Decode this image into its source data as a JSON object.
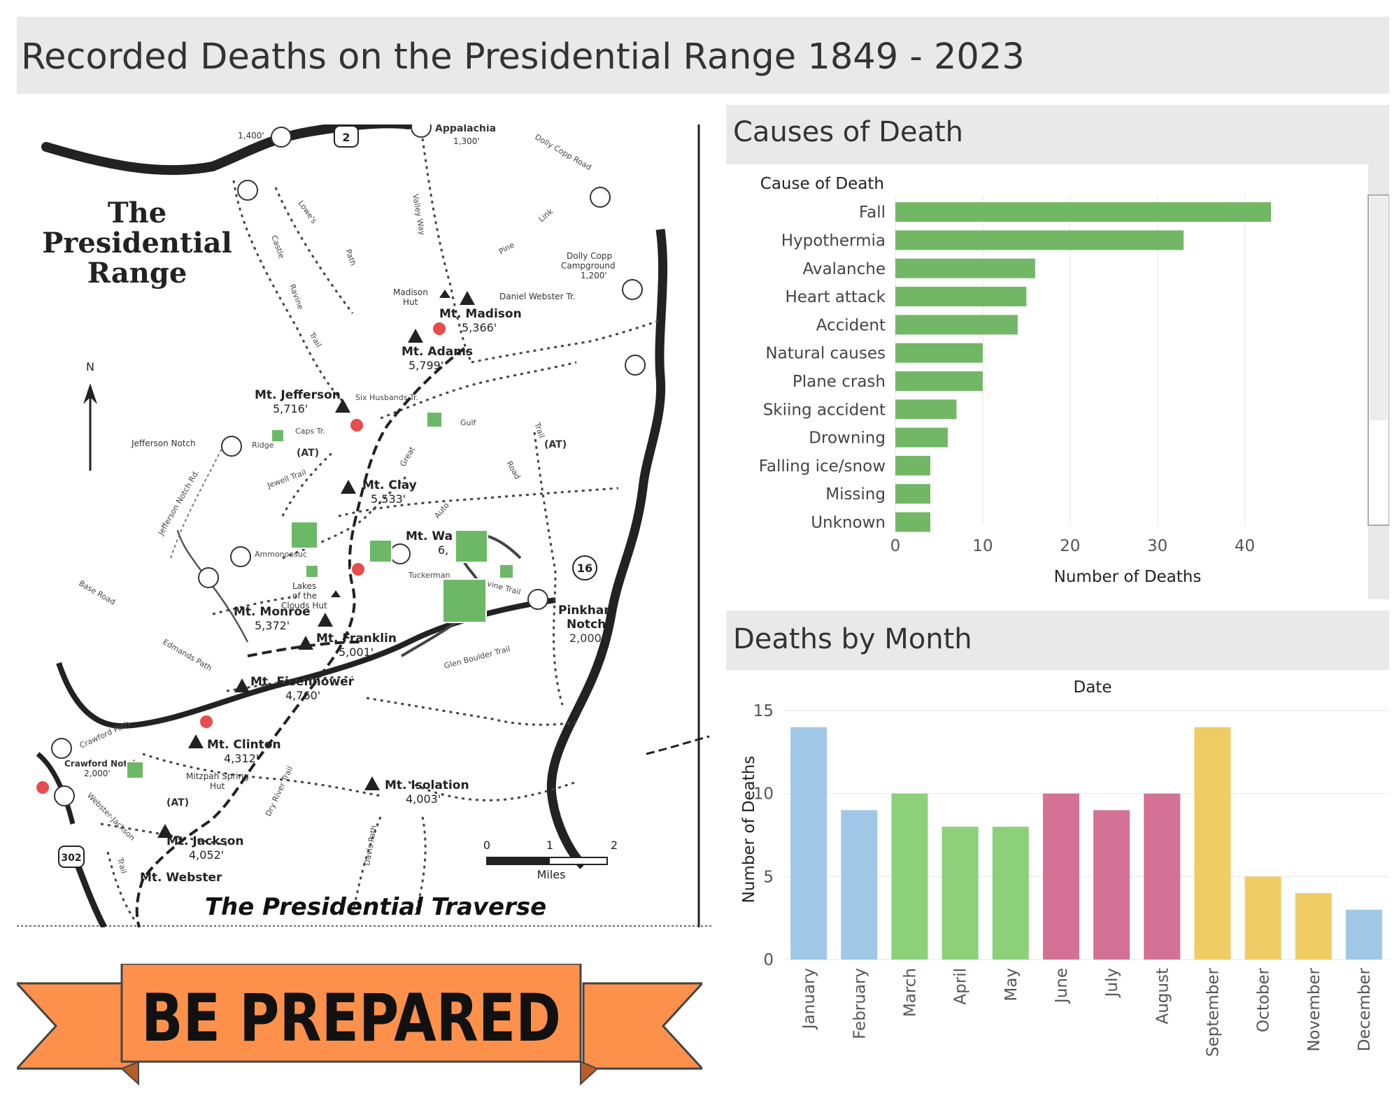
{
  "page_title": "Recorded Deaths on the Presidential Range 1849 - 2023",
  "map": {
    "title_line1": "The",
    "title_line2": "Presidential",
    "title_line3": "Range",
    "caption": "The Presidential Traverse",
    "north_label": "N",
    "scale_labels": [
      "0",
      "1",
      "2"
    ],
    "scale_unit": "Miles",
    "peaks": [
      {
        "name": "Mt. Madison",
        "elev": "5,366'"
      },
      {
        "name": "Mt. Adams",
        "elev": "5,799'"
      },
      {
        "name": "Mt. Jefferson",
        "elev": "5,716'"
      },
      {
        "name": "Mt. Clay",
        "elev": "5,533'"
      },
      {
        "name": "Mt. Wa",
        "elev": "6,"
      },
      {
        "name": "Mt. Monroe",
        "elev": "5,372'"
      },
      {
        "name": "Mt. Franklin",
        "elev": "5,001'"
      },
      {
        "name": "Mt. Eisenhower",
        "elev": "4,760'"
      },
      {
        "name": "Mt. Clinton",
        "elev": "4,312'"
      },
      {
        "name": "Mt. Isolation",
        "elev": "4,003'"
      },
      {
        "name": "Mt. Jackson",
        "elev": "4,052'"
      },
      {
        "name": "Mt. Webster",
        "elev": ""
      }
    ],
    "places": {
      "appalachia": "Appalachia",
      "appalachia_elev": "1,300'",
      "elev_1400": "1,400'",
      "dolly_copp": "Dolly Copp",
      "campground": "Campground",
      "campground_elev": "1,200'",
      "madison_hut": "Madison",
      "hut": "Hut",
      "daniel_webster": "Daniel Webster Tr.",
      "jefferson_notch": "Jefferson Notch",
      "pinkham": "Pinkham",
      "notch": "Notch",
      "pinkham_elev": "2,000'",
      "crawford_notch": "Crawford Notch",
      "crawford_elev": "2,000'",
      "mizpah": "Mitzpah Spring",
      "mizpah_hut": "Hut",
      "lakes1": "Lakes",
      "lakes2": "of the",
      "lakes3": "Clouds Hut",
      "at1": "(AT)",
      "at2": "(AT)",
      "at3": "(AT)",
      "route2": "2",
      "route16": "16",
      "route302": "302"
    },
    "trails": {
      "lowes": "Lowe's",
      "path": "Path",
      "castle": "Castle",
      "ravine": "Ravine",
      "trail": "Trail",
      "valley_way": "Valley Way",
      "pine": "Pine",
      "link": "Link",
      "six_husbands": "Six Husbands Tr.",
      "gulf": "Gulf",
      "trail2": "Trail",
      "great": "Great",
      "caps": "Caps Tr.",
      "ridge": "Ridge",
      "jewell": "Jewell Trail",
      "ammonoosuc": "Ammonoosuc",
      "auto": "Auto",
      "road": "Road",
      "tuckerman": "Tuckerman",
      "ravine_trail": "Ravine Trail",
      "boulder": "Glen Boulder Trail",
      "jefferson_notch_rd": "Jefferson Notch Rd.",
      "base_road": "Base Road",
      "edmands": "Edmands Path",
      "crawford_path": "Crawford Path",
      "dry_river": "Dry River Trail",
      "davis": "Davis Path",
      "webster_jackson": "Webster-Jackson",
      "trail3": "Trail",
      "dolly_copp_road": "Dolly Copp Road"
    }
  },
  "banner_text": "BE PREPARED",
  "causes_panel": {
    "title": "Causes of Death"
  },
  "month_panel": {
    "title": "Deaths by Month"
  },
  "colors": {
    "bar_green": "#72b765",
    "winter_blue": "#a0c8e6",
    "spring_green": "#8cd07a",
    "summer_pink": "#d37295",
    "fall_yellow": "#f0cc64",
    "marker_red": "#e84c4c",
    "marker_green": "#6db867",
    "banner_orange": "#fd914c"
  },
  "chart_data": [
    {
      "type": "bar",
      "orientation": "horizontal",
      "categories_header": "Cause of Death",
      "categories": [
        "Fall",
        "Hypothermia",
        "Avalanche",
        "Heart attack",
        "Accident",
        "Natural causes",
        "Plane crash",
        "Skiing accident",
        "Drowning",
        "Falling ice/snow",
        "Missing",
        "Unknown"
      ],
      "values": [
        43,
        33,
        16,
        15,
        14,
        10,
        10,
        7,
        6,
        4,
        4,
        4
      ],
      "xlabel": "Number of Deaths",
      "xlim": [
        0,
        45
      ],
      "ticks": [
        "0",
        "10",
        "20",
        "30",
        "40"
      ],
      "grid": true
    },
    {
      "type": "bar",
      "orientation": "vertical",
      "header": "Date",
      "categories": [
        "January",
        "February",
        "March",
        "April",
        "May",
        "June",
        "July",
        "August",
        "September",
        "October",
        "November",
        "December"
      ],
      "values": [
        14,
        9,
        10,
        8,
        8,
        10,
        9,
        10,
        14,
        5,
        4,
        3
      ],
      "seasons": [
        "winter",
        "winter",
        "spring",
        "spring",
        "spring",
        "summer",
        "summer",
        "summer",
        "fall",
        "fall",
        "fall",
        "winter"
      ],
      "ylabel": "Number of Deaths",
      "ylim": [
        0,
        15
      ],
      "ticks": [
        "0",
        "5",
        "10",
        "15"
      ],
      "grid": true
    }
  ]
}
